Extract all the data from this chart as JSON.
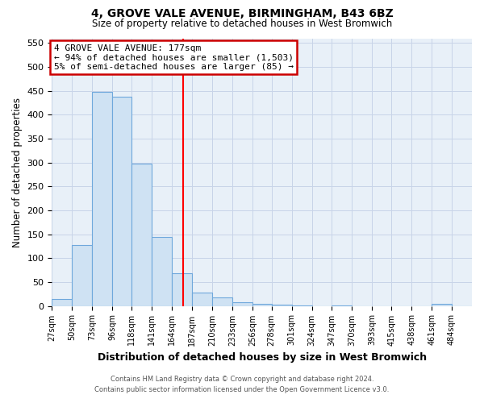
{
  "title": "4, GROVE VALE AVENUE, BIRMINGHAM, B43 6BZ",
  "subtitle": "Size of property relative to detached houses in West Bromwich",
  "xlabel": "Distribution of detached houses by size in West Bromwich",
  "ylabel": "Number of detached properties",
  "footer_line1": "Contains HM Land Registry data © Crown copyright and database right 2024.",
  "footer_line2": "Contains public sector information licensed under the Open Government Licence v3.0.",
  "bin_edges": [
    27,
    50,
    73,
    96,
    118,
    141,
    164,
    187,
    210,
    233,
    256,
    278,
    301,
    324,
    347,
    370,
    393,
    415,
    438,
    461,
    484,
    507
  ],
  "bin_labels": [
    "27sqm",
    "50sqm",
    "73sqm",
    "96sqm",
    "118sqm",
    "141sqm",
    "164sqm",
    "187sqm",
    "210sqm",
    "233sqm",
    "256sqm",
    "278sqm",
    "301sqm",
    "324sqm",
    "347sqm",
    "370sqm",
    "393sqm",
    "415sqm",
    "438sqm",
    "461sqm",
    "484sqm"
  ],
  "counts": [
    15,
    128,
    448,
    437,
    298,
    145,
    68,
    28,
    17,
    8,
    5,
    2,
    1,
    0,
    1,
    0,
    0,
    0,
    0,
    5,
    0
  ],
  "ylim": [
    0,
    560
  ],
  "yticks": [
    0,
    50,
    100,
    150,
    200,
    250,
    300,
    350,
    400,
    450,
    500,
    550
  ],
  "bar_color": "#cfe2f3",
  "bar_edge_color": "#6fa8dc",
  "property_line_x": 177,
  "property_line_color": "red",
  "annotation_title": "4 GROVE VALE AVENUE: 177sqm",
  "annotation_line1": "← 94% of detached houses are smaller (1,503)",
  "annotation_line2": "5% of semi-detached houses are larger (85) →",
  "annotation_box_color": "white",
  "annotation_box_edge_color": "#cc0000",
  "bg_color": "#ffffff",
  "grid_color": "#c8d4e8",
  "plot_bg_color": "#e8f0f8"
}
